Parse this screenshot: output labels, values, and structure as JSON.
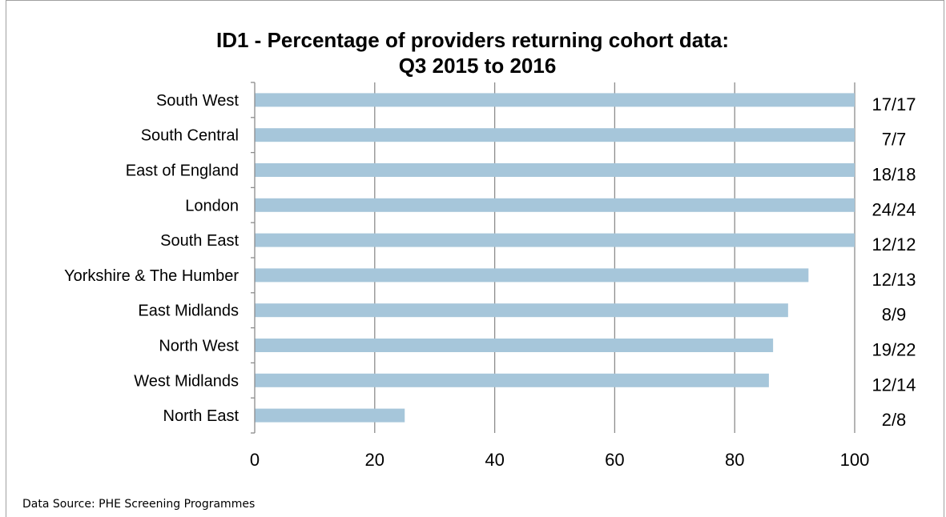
{
  "chart_data": {
    "type": "bar",
    "orientation": "horizontal",
    "title": [
      "ID1 - Percentage of providers returning cohort data:",
      "Q3 2015 to 2016"
    ],
    "categories": [
      "South West",
      "South Central",
      "East of England",
      "London",
      "South East",
      "Yorkshire & The Humber",
      "East Midlands",
      "North West",
      "West Midlands",
      "North East"
    ],
    "values": [
      100,
      100,
      100,
      100,
      100,
      92.3,
      88.9,
      86.4,
      85.7,
      25
    ],
    "data_labels": [
      "17/17",
      "7/7",
      "18/18",
      "24/24",
      "12/12",
      "12/13",
      "8/9",
      "19/22",
      "12/14",
      "2/8"
    ],
    "xlim": [
      0,
      100
    ],
    "xticks": [
      0,
      20,
      40,
      60,
      80,
      100
    ],
    "grid": "vertical",
    "bar_color": "#a6c6da",
    "legend": "none"
  },
  "footer": {
    "source": "Data Source: PHE Screening Programmes"
  }
}
